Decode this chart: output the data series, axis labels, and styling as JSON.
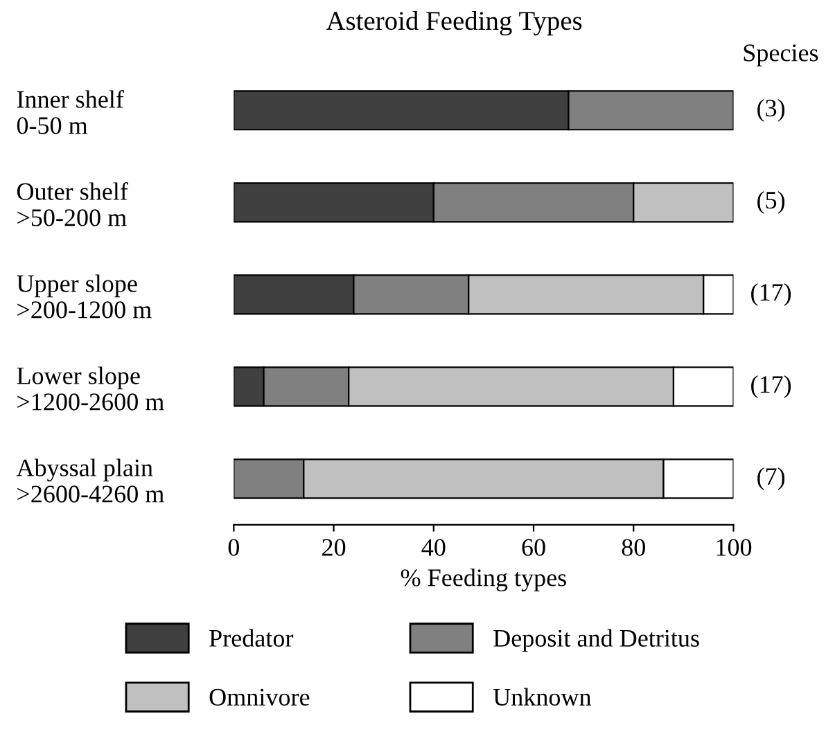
{
  "chart_data": {
    "type": "bar",
    "orientation": "horizontal",
    "stacked": true,
    "title": "Asteroid Feeding Types",
    "xlabel": "% Feeding types",
    "categories": [
      "Inner shelf\n0-50 m",
      "Outer shelf\n>50-200 m",
      "Upper slope\n>200-1200 m",
      "Lower slope\n>1200-2600 m",
      "Abyssal plain\n>2600-4260 m"
    ],
    "series": [
      {
        "name": "Predator",
        "color": "#404040",
        "values": [
          67,
          40,
          24,
          6,
          0
        ]
      },
      {
        "name": "Deposit and Detritus",
        "color": "#808080",
        "values": [
          33,
          40,
          23,
          17,
          14
        ]
      },
      {
        "name": "Omnivore",
        "color": "#c0c0c0",
        "values": [
          0,
          20,
          47,
          65,
          72
        ]
      },
      {
        "name": "Unknown",
        "color": "#ffffff",
        "values": [
          0,
          0,
          6,
          12,
          14
        ]
      }
    ],
    "xlim": [
      0,
      100
    ],
    "xticks": [
      0,
      20,
      40,
      60,
      80,
      100
    ],
    "grid": false,
    "legend": "bottom",
    "annotations": [
      "Species",
      "(3)",
      "(5)",
      "(17)",
      "(17)",
      "(7)"
    ]
  }
}
